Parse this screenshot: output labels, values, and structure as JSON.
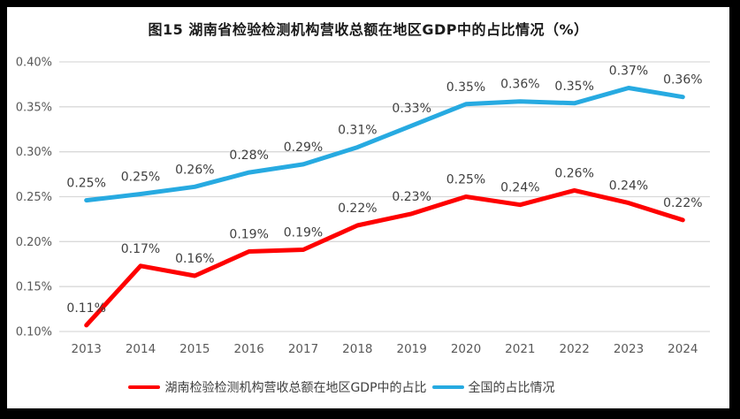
{
  "window": {
    "frame_color": "#000000",
    "background": "#FFFFFF"
  },
  "colors": {
    "gridline": "#D9D9D9",
    "axis_text": "#595959",
    "data_label_text": "#404040",
    "title_text": "#1A1A1A",
    "series_hunan": "#FE0000",
    "series_national": "#27AAE1"
  },
  "chart_data": {
    "type": "line",
    "title": "图15 湖南省检验检测机构营收总额在地区GDP中的占比情况（%）",
    "categories": [
      "2013",
      "2014",
      "2015",
      "2016",
      "2017",
      "2018",
      "2019",
      "2020",
      "2021",
      "2022",
      "2023",
      "2024"
    ],
    "series": [
      {
        "name": "湖南检验检测机构营收总额在地区GDP中的占比",
        "color": "#FE0000",
        "values": [
          0.107,
          0.173,
          0.162,
          0.189,
          0.191,
          0.218,
          0.231,
          0.25,
          0.241,
          0.257,
          0.243,
          0.224
        ],
        "labels": [
          "0.11%",
          "0.17%",
          "0.16%",
          "0.19%",
          "0.19%",
          "0.22%",
          "0.23%",
          "0.25%",
          "0.24%",
          "0.26%",
          "0.24%",
          "0.22%"
        ]
      },
      {
        "name": "全国的占比情况",
        "color": "#27AAE1",
        "values": [
          0.246,
          0.253,
          0.261,
          0.277,
          0.286,
          0.305,
          0.329,
          0.353,
          0.356,
          0.354,
          0.371,
          0.361
        ],
        "labels": [
          "0.25%",
          "0.25%",
          "0.26%",
          "0.28%",
          "0.29%",
          "0.31%",
          "0.33%",
          "0.35%",
          "0.36%",
          "0.35%",
          "0.37%",
          "0.36%"
        ]
      }
    ],
    "y_axis": {
      "min": 0.1,
      "max": 0.4,
      "step": 0.05,
      "tick_labels": [
        "0.10%",
        "0.15%",
        "0.20%",
        "0.25%",
        "0.30%",
        "0.35%",
        "0.40%"
      ]
    },
    "grid": true,
    "legend_position": "bottom"
  }
}
